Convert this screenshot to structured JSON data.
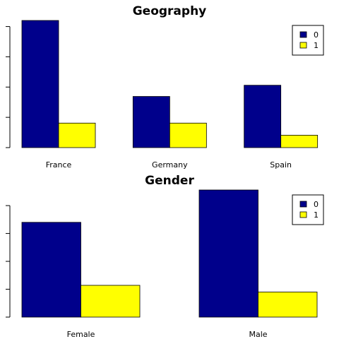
{
  "chart_data": [
    {
      "type": "bar",
      "title": "Geography",
      "categories": [
        "France",
        "Germany",
        "Spain"
      ],
      "series": [
        {
          "name": "0",
          "values": [
            4200,
            1690,
            2060
          ],
          "color": "#00008b"
        },
        {
          "name": "1",
          "values": [
            810,
            810,
            410
          ],
          "color": "#ffff00"
        }
      ],
      "ylim": [
        0,
        4200
      ],
      "yticks": [
        0,
        1000,
        2000,
        3000,
        4000
      ],
      "legend": "top-right"
    },
    {
      "type": "bar",
      "title": "Gender",
      "categories": [
        "Female",
        "Male"
      ],
      "series": [
        {
          "name": "0",
          "values": [
            3400,
            4560
          ],
          "color": "#00008b"
        },
        {
          "name": "1",
          "values": [
            1140,
            900
          ],
          "color": "#ffff00"
        }
      ],
      "ylim": [
        0,
        4560
      ],
      "yticks": [
        0,
        1000,
        2000,
        3000,
        4000
      ],
      "legend": "top-right"
    }
  ]
}
